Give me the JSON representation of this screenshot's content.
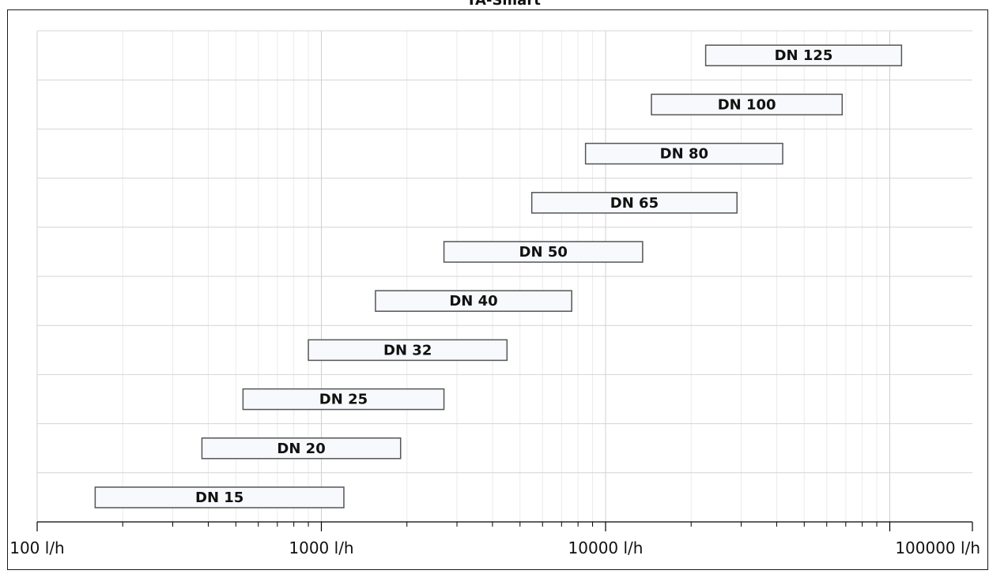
{
  "chart_data": {
    "type": "bar",
    "orientation": "horizontal-range",
    "title": "TA-Smart",
    "xlabel": "",
    "ylabel": "",
    "x_scale": "log",
    "xlim": [
      100,
      160000
    ],
    "x_ticks": [
      100,
      1000,
      10000,
      100000
    ],
    "x_tick_labels": [
      "100 l/h",
      "1000 l/h",
      "10000 l/h",
      "100000 l/h"
    ],
    "grid": true,
    "categories": [
      "DN 15",
      "DN 20",
      "DN 25",
      "DN 32",
      "DN 40",
      "DN 50",
      "DN 65",
      "DN 80",
      "DN 100",
      "DN 125"
    ],
    "ranges": [
      [
        160,
        1200
      ],
      [
        380,
        1900
      ],
      [
        530,
        2700
      ],
      [
        900,
        4500
      ],
      [
        1550,
        7600
      ],
      [
        2700,
        13500
      ],
      [
        5500,
        29000
      ],
      [
        8500,
        42000
      ],
      [
        14500,
        68000
      ],
      [
        22500,
        110000
      ]
    ]
  },
  "colors": {
    "bar_fill": "#f7f9fc",
    "bar_stroke": "#555555",
    "grid": "#d0d0d0"
  }
}
